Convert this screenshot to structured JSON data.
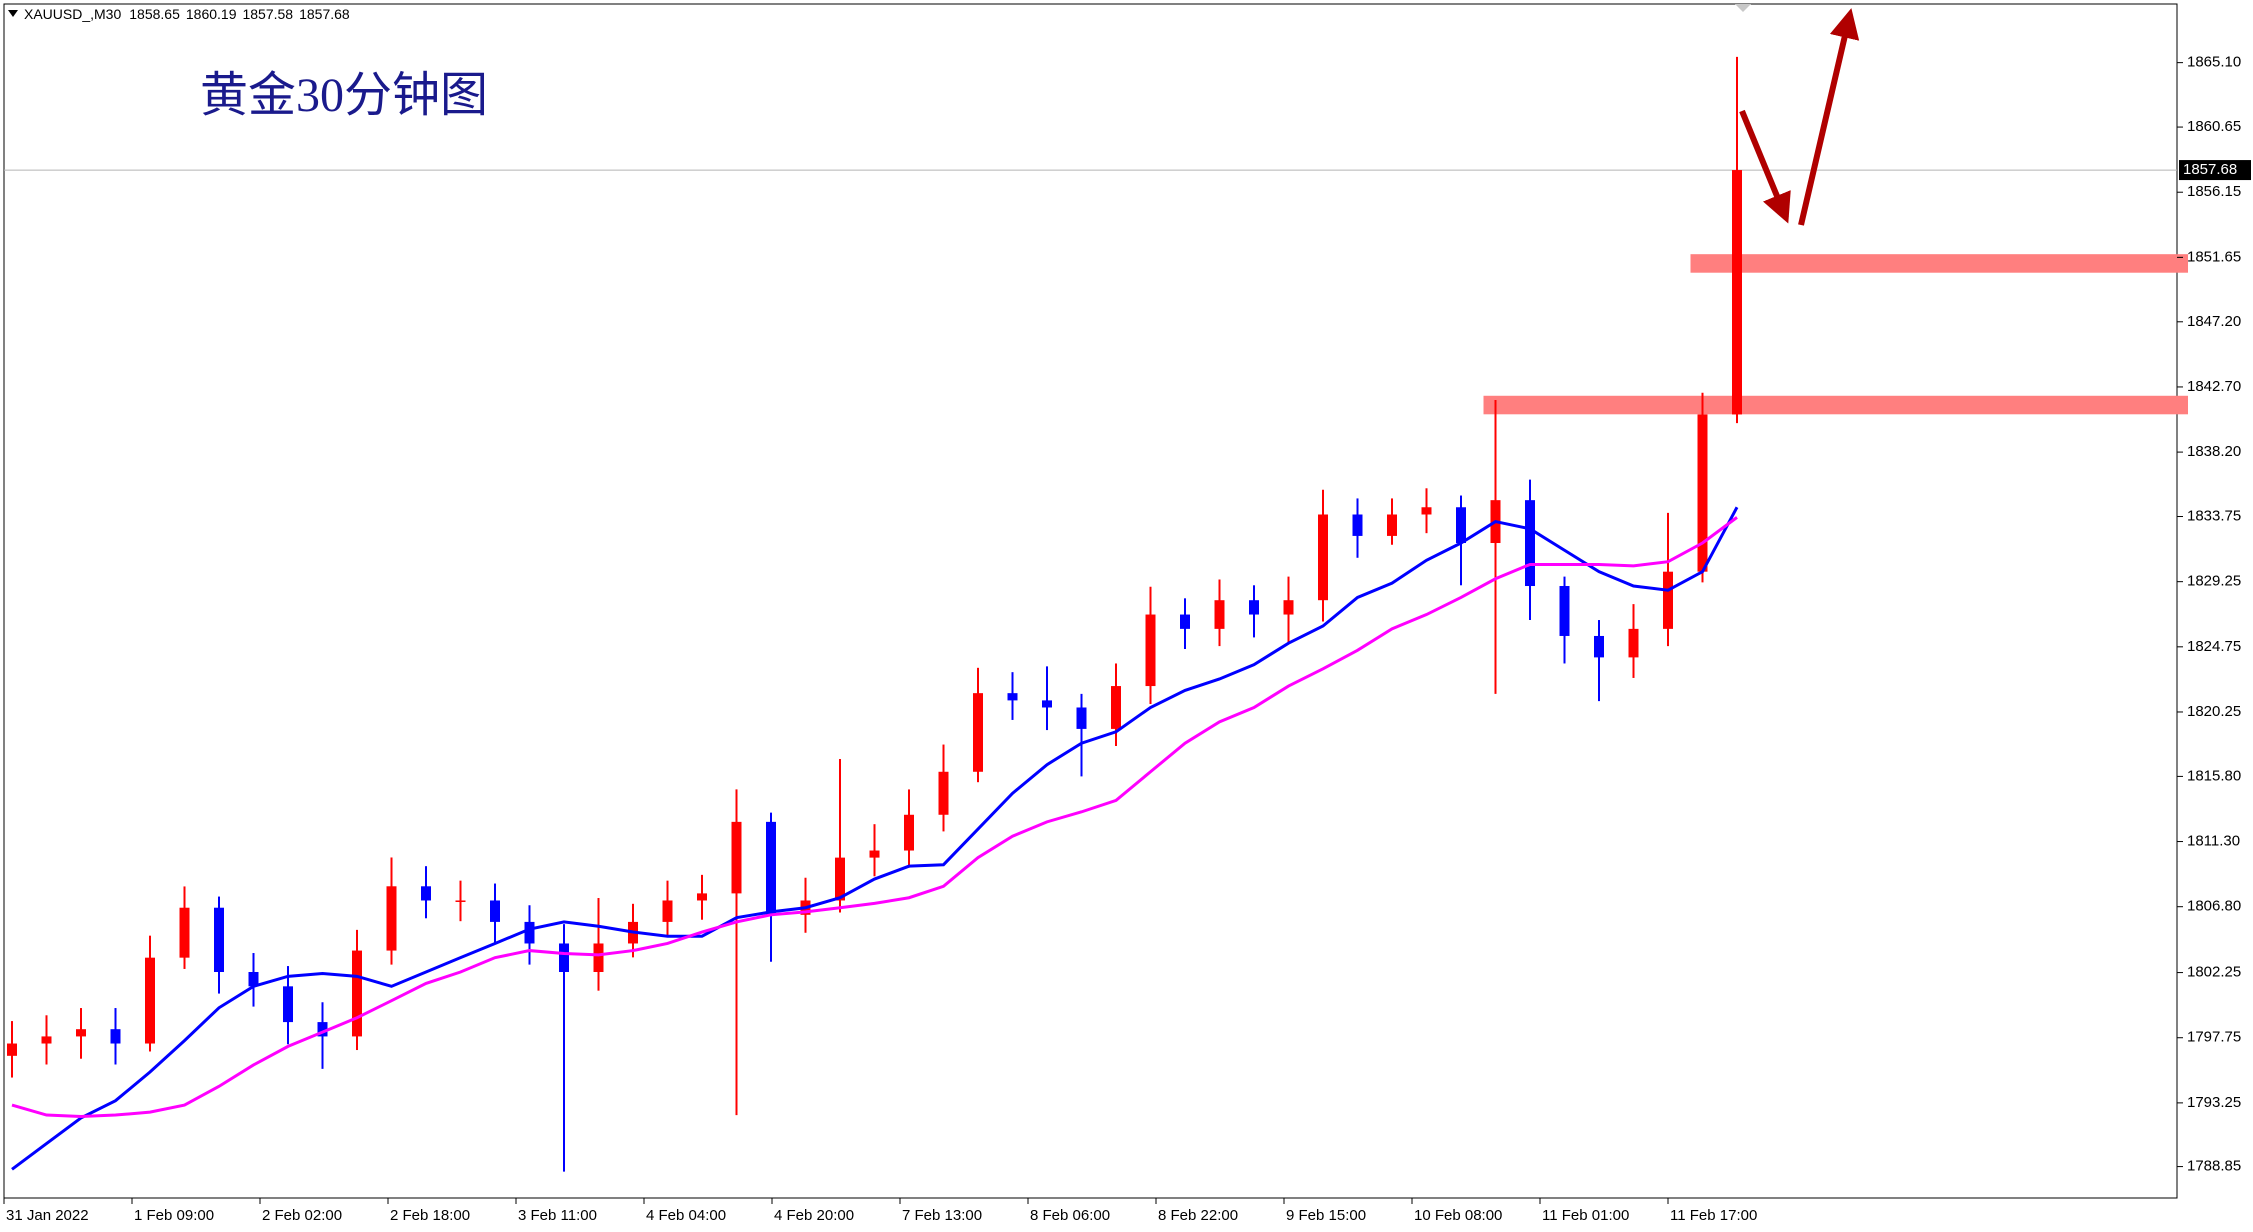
{
  "chart_data": {
    "type": "candlestick",
    "symbol": "XAUUSD_,M30",
    "header_prices": [
      1858.65,
      1860.19,
      1857.58,
      1857.68
    ],
    "title": "黄金30分钟图",
    "x_labels": [
      "31 Jan 2022",
      "1 Feb 09:00",
      "2 Feb 02:00",
      "2 Feb 18:00",
      "3 Feb 11:00",
      "4 Feb 04:00",
      "4 Feb 20:00",
      "7 Feb 13:00",
      "8 Feb 06:00",
      "8 Feb 22:00",
      "9 Feb 15:00",
      "10 Feb 08:00",
      "11 Feb 01:00",
      "11 Feb 17:00"
    ],
    "open": [
      1796.5,
      1797.35,
      1797.84,
      1798.34,
      1797.35,
      1803.28,
      1806.73,
      1802.29,
      1801.3,
      1798.83,
      1797.84,
      1803.77,
      1808.21,
      1807.23,
      1807.23,
      1805.75,
      1804.26,
      1802.29,
      1804.26,
      1805.75,
      1807.23,
      1807.72,
      1812.66,
      1806.24,
      1807.23,
      1810.19,
      1810.68,
      1813.15,
      1816.12,
      1821.55,
      1821.05,
      1820.56,
      1819.08,
      1822.04,
      1826.98,
      1825.99,
      1827.97,
      1826.98,
      1827.97,
      1833.89,
      1832.41,
      1833.89,
      1834.39,
      1831.92,
      1834.88,
      1828.95,
      1825.5,
      1824.02,
      1825.99,
      1829.94,
      1840.8
    ],
    "high": [
      1798.9,
      1799.3,
      1799.8,
      1799.8,
      1804.8,
      1808.2,
      1807.5,
      1803.6,
      1802.7,
      1800.2,
      1805.2,
      1810.2,
      1809.6,
      1808.6,
      1808.4,
      1806.9,
      1805.6,
      1807.4,
      1807.0,
      1808.6,
      1809.0,
      1814.9,
      1813.3,
      1808.8,
      1817.0,
      1812.5,
      1814.9,
      1818.0,
      1823.3,
      1823.0,
      1823.4,
      1821.5,
      1823.6,
      1828.9,
      1828.1,
      1829.4,
      1829.0,
      1829.6,
      1835.6,
      1835.0,
      1835.0,
      1835.7,
      1835.2,
      1841.8,
      1836.3,
      1829.6,
      1826.6,
      1827.7,
      1834.0,
      1842.3,
      1865.5
    ],
    "low": [
      1795.0,
      1795.9,
      1796.3,
      1795.9,
      1796.8,
      1802.5,
      1800.8,
      1799.9,
      1797.3,
      1795.6,
      1796.9,
      1802.8,
      1806.0,
      1805.8,
      1804.3,
      1802.8,
      1788.5,
      1801.0,
      1803.3,
      1804.8,
      1805.9,
      1792.4,
      1803.0,
      1805.0,
      1806.4,
      1808.9,
      1809.5,
      1812.0,
      1815.4,
      1819.7,
      1819.0,
      1815.8,
      1817.9,
      1820.8,
      1824.6,
      1824.8,
      1825.4,
      1825.0,
      1826.5,
      1830.9,
      1831.8,
      1832.6,
      1829.0,
      1821.5,
      1826.6,
      1823.6,
      1821.0,
      1822.6,
      1824.8,
      1829.2,
      1840.2
    ],
    "close": [
      1797.35,
      1797.84,
      1798.34,
      1797.35,
      1803.28,
      1806.73,
      1802.29,
      1801.3,
      1798.83,
      1797.84,
      1803.77,
      1808.21,
      1807.23,
      1807.23,
      1805.75,
      1804.26,
      1802.29,
      1804.26,
      1805.75,
      1807.23,
      1807.72,
      1812.66,
      1806.24,
      1807.23,
      1810.19,
      1810.68,
      1813.15,
      1816.12,
      1821.55,
      1821.05,
      1820.56,
      1819.08,
      1822.04,
      1826.98,
      1825.99,
      1827.97,
      1826.98,
      1827.97,
      1833.89,
      1832.41,
      1833.89,
      1834.39,
      1831.92,
      1834.88,
      1828.95,
      1825.5,
      1824.02,
      1825.99,
      1829.94,
      1840.8,
      1857.68
    ],
    "up_color": "#ff0000",
    "down_color": "#0000ff",
    "moving_averages": [
      {
        "color": "#0000ff",
        "values": [
          1788.66,
          1790.44,
          1792.21,
          1793.4,
          1795.38,
          1797.55,
          1799.82,
          1801.3,
          1801.99,
          1802.19,
          1801.99,
          1801.3,
          1802.29,
          1803.28,
          1804.26,
          1805.25,
          1805.75,
          1805.45,
          1805.05,
          1804.76,
          1804.76,
          1806.04,
          1806.44,
          1806.73,
          1807.42,
          1808.71,
          1809.6,
          1809.7,
          1812.16,
          1814.63,
          1816.61,
          1818.09,
          1818.88,
          1820.56,
          1821.74,
          1822.53,
          1823.52,
          1825.0,
          1826.19,
          1828.16,
          1829.15,
          1830.73,
          1831.92,
          1833.4,
          1832.9,
          1831.42,
          1829.94,
          1828.95,
          1828.66,
          1829.94,
          1834.39
        ]
      },
      {
        "color": "#ff00ff",
        "values": [
          1793.1,
          1792.41,
          1792.31,
          1792.41,
          1792.61,
          1793.1,
          1794.39,
          1795.87,
          1797.15,
          1798.14,
          1799.13,
          1800.31,
          1801.5,
          1802.29,
          1803.28,
          1803.77,
          1803.57,
          1803.47,
          1803.77,
          1804.26,
          1805.05,
          1805.75,
          1806.24,
          1806.44,
          1806.73,
          1807.03,
          1807.42,
          1808.21,
          1810.19,
          1811.67,
          1812.66,
          1813.35,
          1814.14,
          1816.12,
          1818.09,
          1819.57,
          1820.56,
          1822.04,
          1823.23,
          1824.51,
          1825.99,
          1826.98,
          1828.16,
          1829.45,
          1830.44,
          1830.44,
          1830.44,
          1830.34,
          1830.63,
          1831.92,
          1833.69
        ]
      }
    ],
    "last_price": 1857.68,
    "zones": [
      [
        1850.59,
        1851.87
      ],
      [
        1840.81,
        1842.09
      ]
    ],
    "ylim": [
      1786.68,
      1869.15
    ],
    "yticks": [
      {
        "value": 1865.1,
        "label": "1865.10"
      },
      1860.65,
      1856.15,
      1851.65,
      {
        "value": 1847.2,
        "label": "1847.20"
      },
      {
        "value": 1842.7,
        "label": "1842.70"
      },
      {
        "value": 1838.2,
        "label": "1838.20"
      },
      1833.75,
      1829.25,
      1824.75,
      1820.25,
      {
        "value": 1815.8,
        "label": "1815.80"
      },
      {
        "value": 1811.3,
        "label": "1811.30"
      },
      {
        "value": 1806.8,
        "label": "1806.80"
      },
      1802.25,
      1797.75,
      1793.25,
      1788.85
    ]
  }
}
